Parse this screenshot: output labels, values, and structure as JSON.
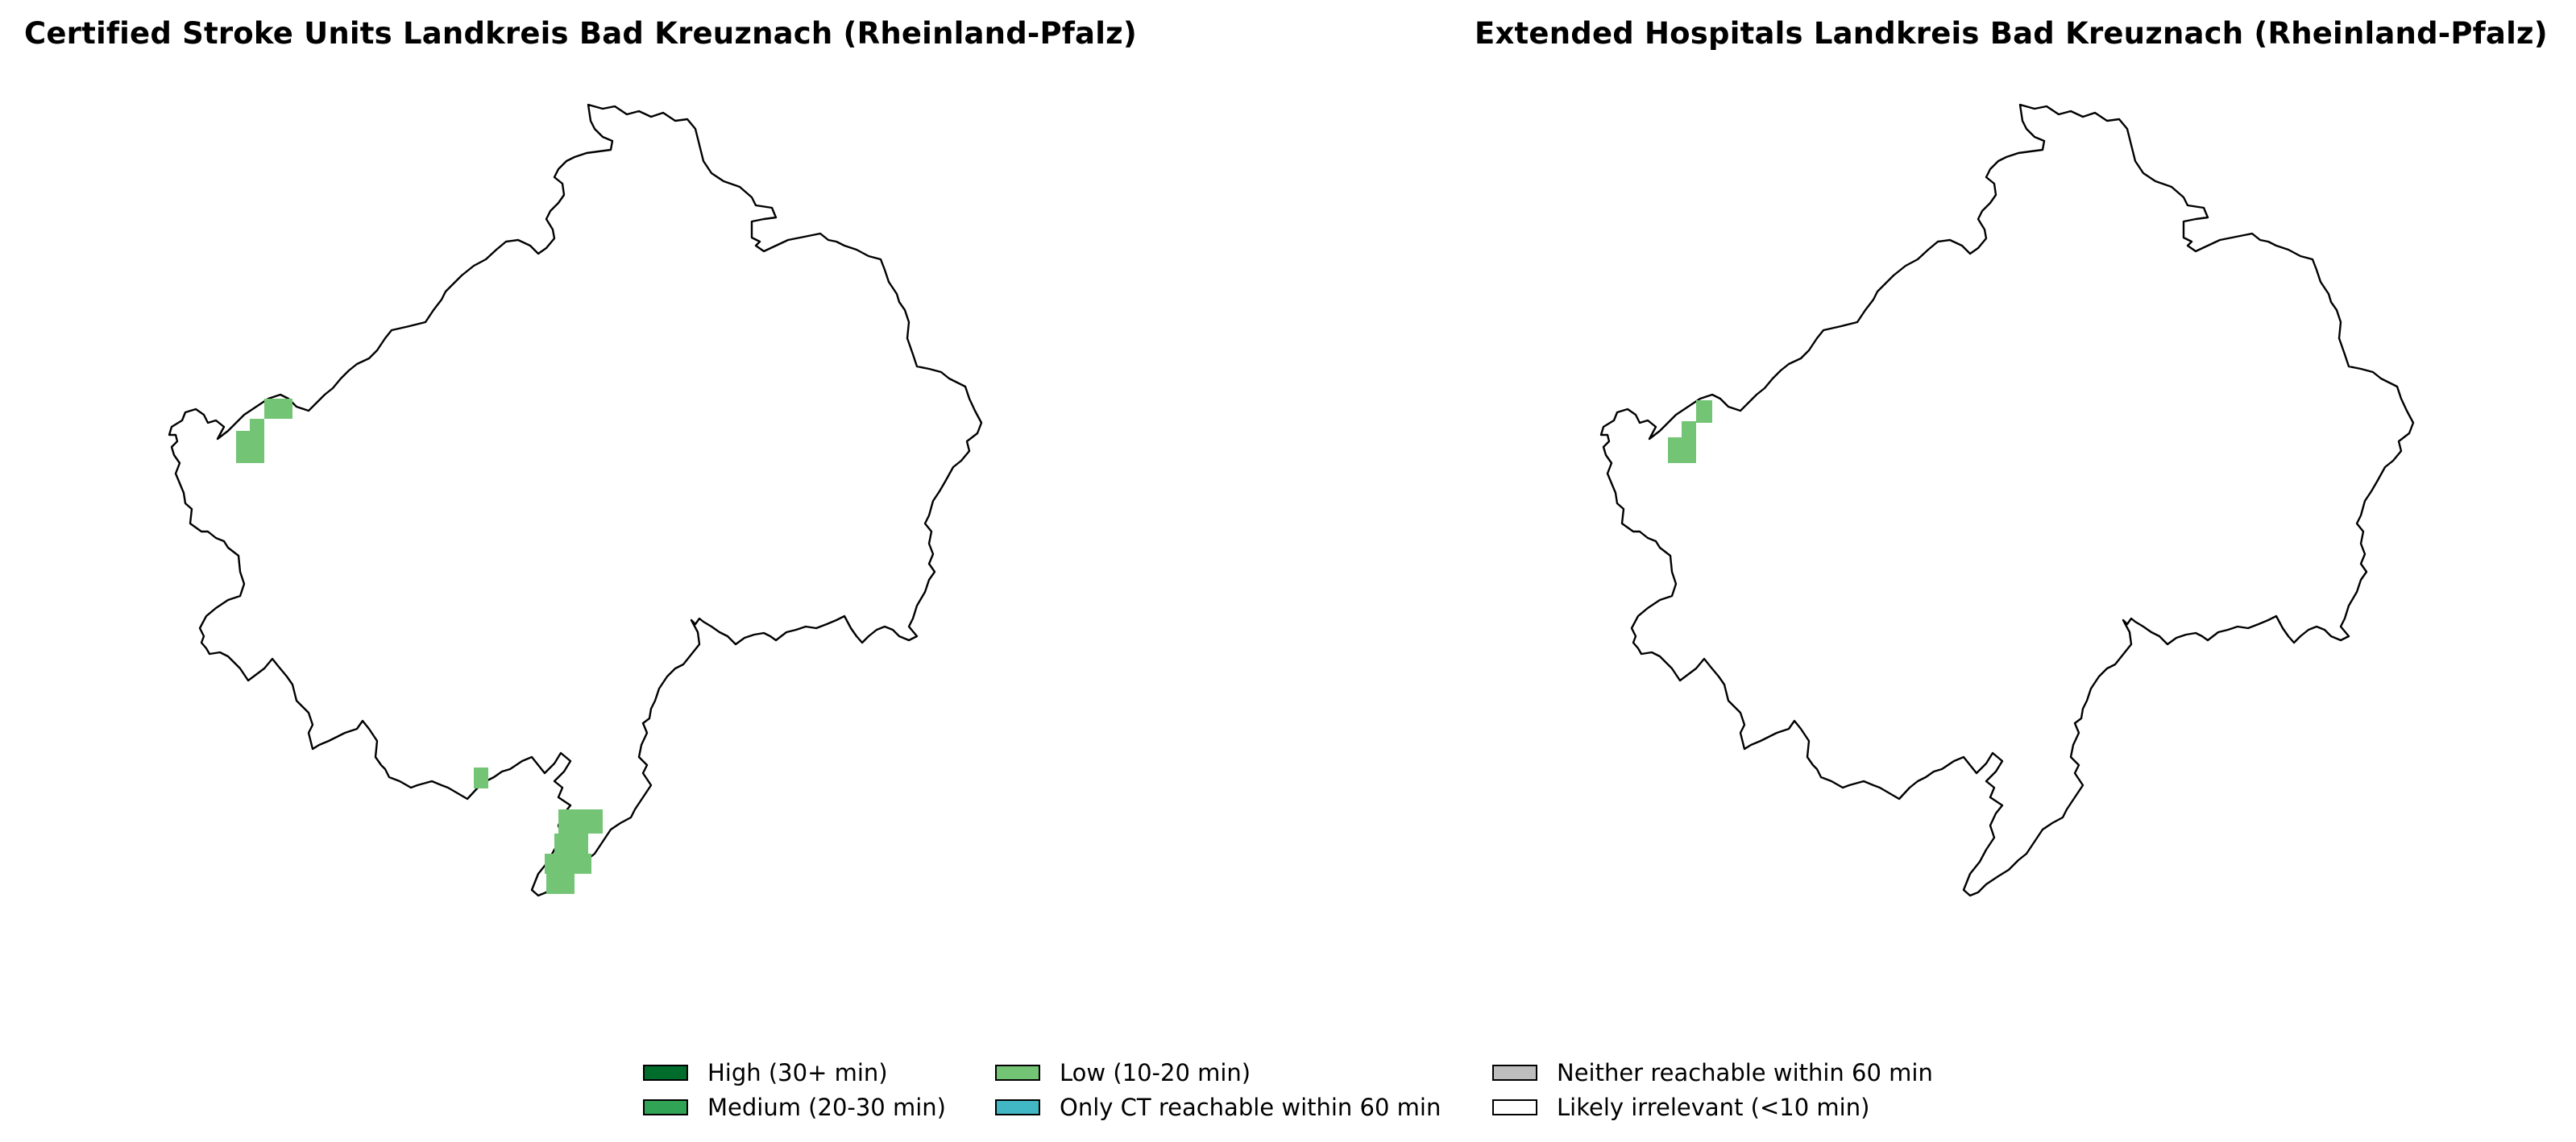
{
  "maps": [
    {
      "title": "Certified Stroke Units Landkreis Bad Kreuznach (Rheinland-Pfalz)",
      "cells": [
        {
          "category": "low"
        },
        {
          "category": "low"
        },
        {
          "category": "low"
        },
        {
          "category": "low"
        },
        {
          "category": "low"
        },
        {
          "category": "low"
        },
        {
          "category": "low"
        },
        {
          "category": "low"
        }
      ]
    },
    {
      "title": "Extended Hospitals Landkreis Bad Kreuznach (Rheinland-Pfalz)",
      "cells": [
        {
          "category": "low"
        },
        {
          "category": "low"
        },
        {
          "category": "low"
        }
      ]
    }
  ],
  "legend": [
    {
      "key": "high",
      "label": "High (30+ min)",
      "color": "#006d2c"
    },
    {
      "key": "medium",
      "label": "Medium (20-30 min)",
      "color": "#31a354"
    },
    {
      "key": "low",
      "label": "Low (10-20 min)",
      "color": "#74c476"
    },
    {
      "key": "ct",
      "label": "Only CT reachable within 60 min",
      "color": "#41b6c4"
    },
    {
      "key": "neither",
      "label": "Neither reachable within 60 min",
      "color": "#bdbdbd"
    },
    {
      "key": "irrelevant",
      "label": "Likely irrelevant (<10 min)",
      "color": "#ffffff"
    }
  ]
}
